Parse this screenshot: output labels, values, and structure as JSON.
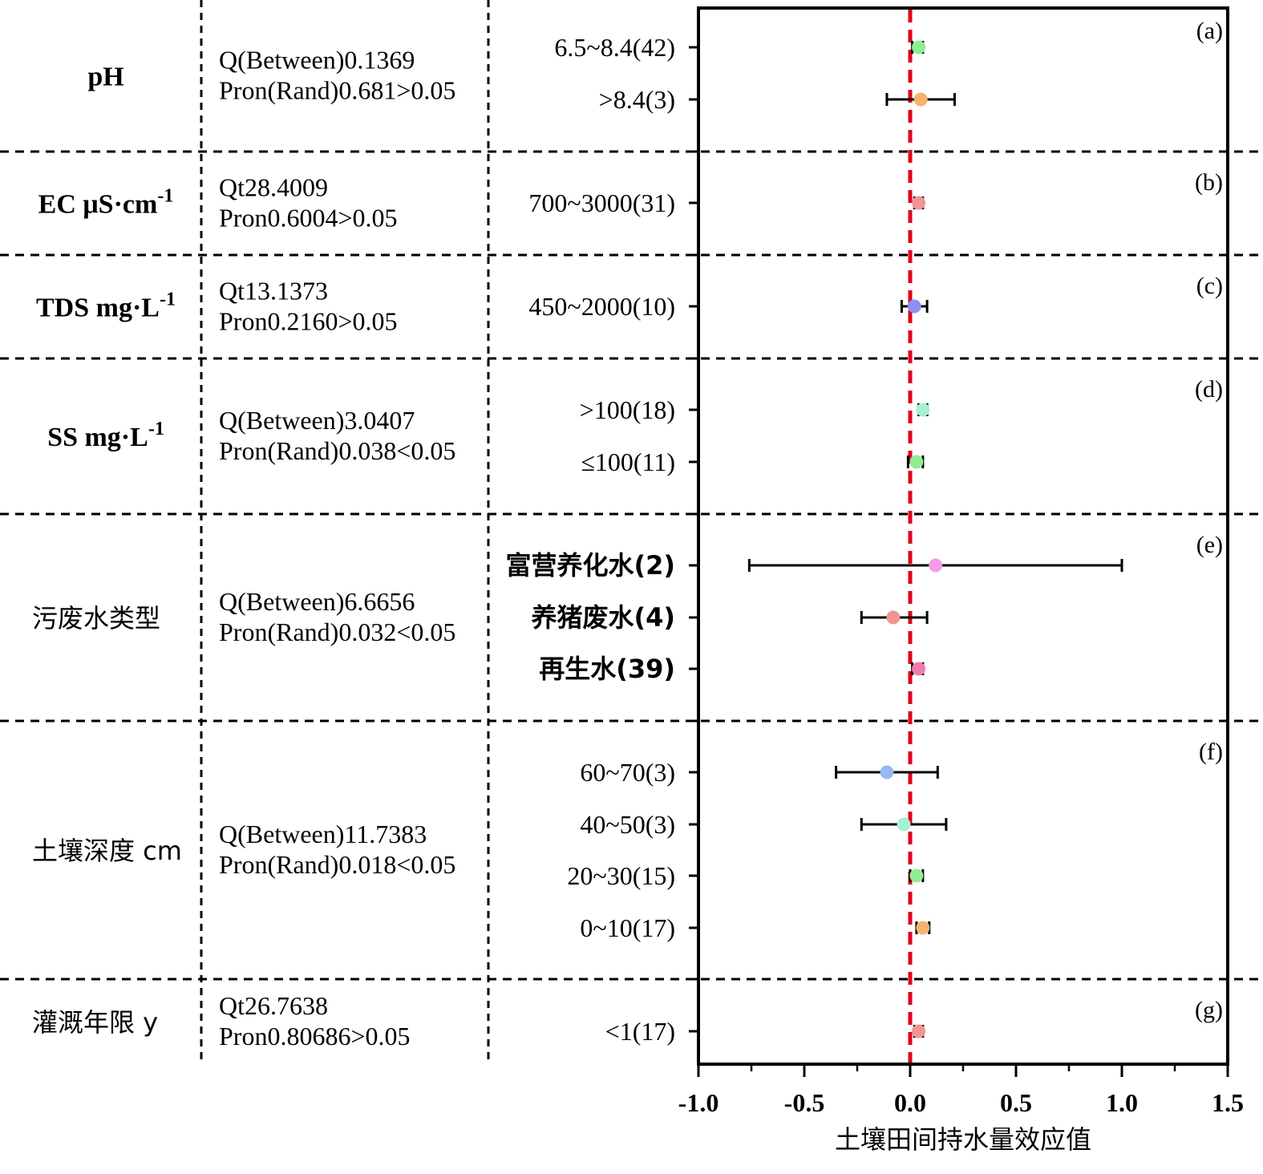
{
  "chart_data": {
    "type": "forest",
    "xlabel": "土壤田间持水量效应值",
    "xlim": [
      -1.0,
      1.5
    ],
    "x_ticks": [
      {
        "value": -1.0,
        "label": "-1.0"
      },
      {
        "value": -0.5,
        "label": "-0.5"
      },
      {
        "value": 0.0,
        "label": "0.0"
      },
      {
        "value": 0.5,
        "label": "0.5"
      },
      {
        "value": 1.0,
        "label": "1.0"
      },
      {
        "value": 1.5,
        "label": "1.5"
      }
    ],
    "reference_line": {
      "x": 0.0,
      "color": "#e3001b",
      "style": "dashed"
    },
    "groups": [
      {
        "panel": "(a)",
        "factor": "pH",
        "factor_unit": "",
        "factor_bold": true,
        "stat_line1": "Q(Between)0.1369",
        "stat_line2": "Pron(Rand)0.681>0.05",
        "rows": [
          {
            "label": "6.5~8.4(42)",
            "mean": 0.04,
            "ci_low": 0.01,
            "ci_high": 0.06,
            "color": "#90ee90"
          },
          {
            "label": ">8.4(3)",
            "mean": 0.05,
            "ci_low": -0.11,
            "ci_high": 0.21,
            "color": "#f7b36b"
          }
        ]
      },
      {
        "panel": "(b)",
        "factor": "EC μS·cm",
        "factor_unit": "-1",
        "factor_bold": true,
        "stat_line1": "Qt28.4009",
        "stat_line2": "Pron0.6004>0.05",
        "rows": [
          {
            "label": "700~3000(31)",
            "mean": 0.04,
            "ci_low": 0.02,
            "ci_high": 0.06,
            "color": "#f29494"
          }
        ]
      },
      {
        "panel": "(c)",
        "factor": "TDS mg·L",
        "factor_unit": "-1",
        "factor_bold": true,
        "stat_line1": "Qt13.1373",
        "stat_line2": "Pron0.2160>0.05",
        "rows": [
          {
            "label": "450~2000(10)",
            "mean": 0.02,
            "ci_low": -0.04,
            "ci_high": 0.08,
            "color": "#8e8ef5"
          }
        ]
      },
      {
        "panel": "(d)",
        "factor": "SS mg·L",
        "factor_unit": "-1",
        "factor_bold": true,
        "stat_line1": "Q(Between)3.0407",
        "stat_line2": "Pron(Rand)0.038<0.05",
        "rows": [
          {
            "label": ">100(18)",
            "mean": 0.06,
            "ci_low": 0.04,
            "ci_high": 0.08,
            "color": "#a4f2d3"
          },
          {
            "label": "≤100(11)",
            "mean": 0.03,
            "ci_low": -0.01,
            "ci_high": 0.06,
            "color": "#90ee90"
          }
        ]
      },
      {
        "panel": "(e)",
        "factor": "污废水类型",
        "factor_unit": "",
        "factor_bold": false,
        "stat_line1": "Q(Between)6.6656",
        "stat_line2": "Pron(Rand)0.032<0.05",
        "rows": [
          {
            "label": "富营养化水(2)",
            "mean": 0.12,
            "ci_low": -0.76,
            "ci_high": 1.0,
            "color": "#f59ae8"
          },
          {
            "label": "养猪废水(4)",
            "mean": -0.08,
            "ci_low": -0.23,
            "ci_high": 0.08,
            "color": "#f29494"
          },
          {
            "label": "再生水(39)",
            "mean": 0.04,
            "ci_low": 0.01,
            "ci_high": 0.06,
            "color": "#f27ab0"
          }
        ]
      },
      {
        "panel": "(f)",
        "factor": "土壤深度 cm",
        "factor_unit": "",
        "factor_bold": false,
        "stat_line1": "Q(Between)11.7383",
        "stat_line2": "Pron(Rand)0.018<0.05",
        "rows": [
          {
            "label": "60~70(3)",
            "mean": -0.11,
            "ci_low": -0.35,
            "ci_high": 0.13,
            "color": "#98b8f5"
          },
          {
            "label": "40~50(3)",
            "mean": -0.03,
            "ci_low": -0.23,
            "ci_high": 0.17,
            "color": "#a4f2d3"
          },
          {
            "label": "20~30(15)",
            "mean": 0.03,
            "ci_low": 0.0,
            "ci_high": 0.06,
            "color": "#90ee90"
          },
          {
            "label": "0~10(17)",
            "mean": 0.06,
            "ci_low": 0.03,
            "ci_high": 0.09,
            "color": "#f7b36b"
          }
        ]
      },
      {
        "panel": "(g)",
        "factor": "灌溉年限  y",
        "factor_unit": "",
        "factor_bold": false,
        "stat_line1": "Qt26.7638",
        "stat_line2": "Pron0.80686>0.05",
        "rows": [
          {
            "label": "<1(17)",
            "mean": 0.04,
            "ci_low": 0.02,
            "ci_high": 0.06,
            "color": "#f29494"
          }
        ]
      }
    ]
  }
}
